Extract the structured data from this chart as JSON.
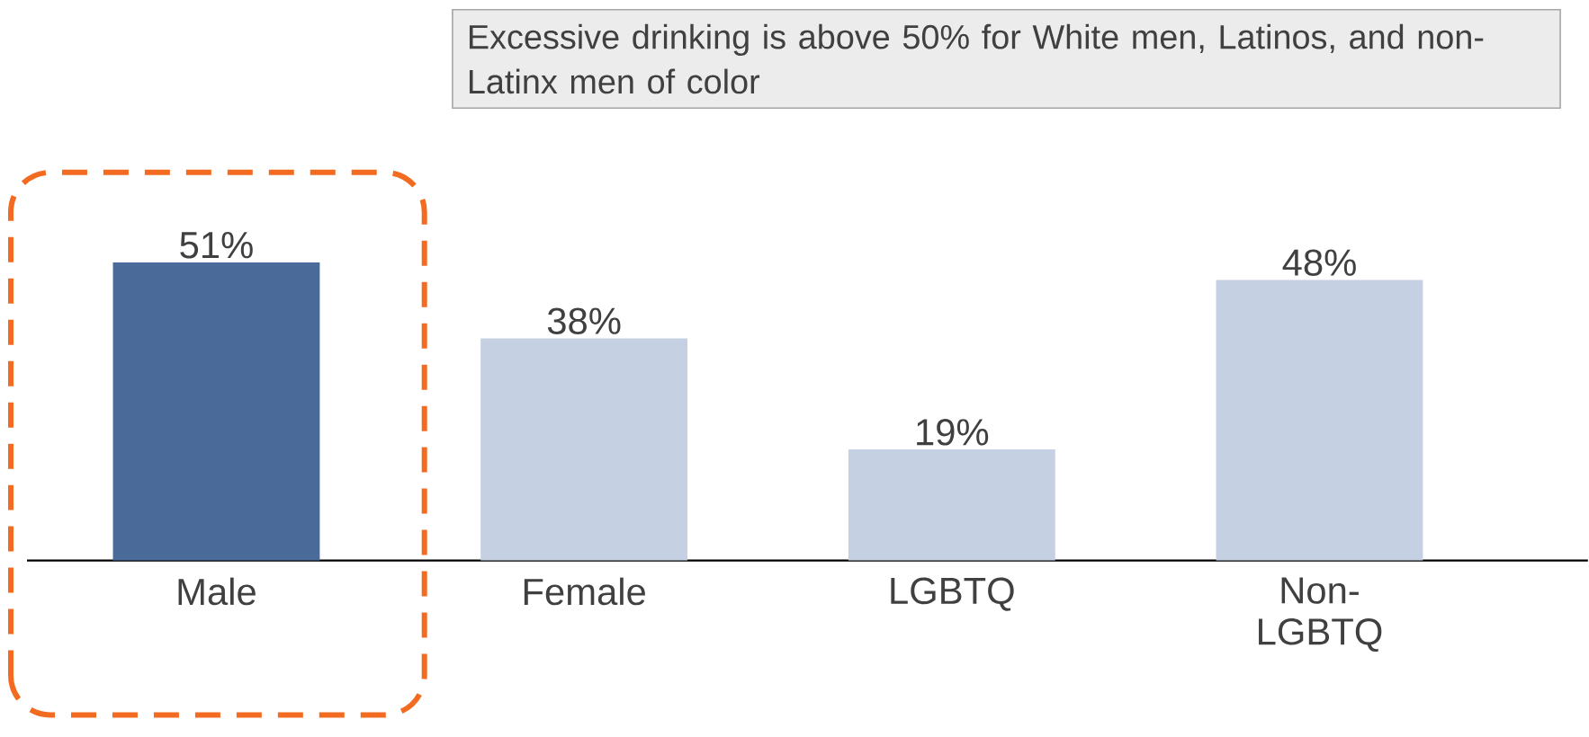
{
  "chart_data": {
    "type": "bar",
    "categories": [
      "Male",
      "Female",
      "LGBTQ",
      "Non-LGBTQ"
    ],
    "values": [
      51,
      38,
      19,
      48
    ],
    "colors": [
      "#4a6a9a",
      "#c5d0e2",
      "#c5d0e2",
      "#c5d0e2"
    ],
    "value_labels": [
      "51%",
      "38%",
      "19%",
      "48%"
    ],
    "annotations": [
      "Excessive drinking is above 50% for White men, Latinos, and non-Latinx men of color"
    ]
  }
}
